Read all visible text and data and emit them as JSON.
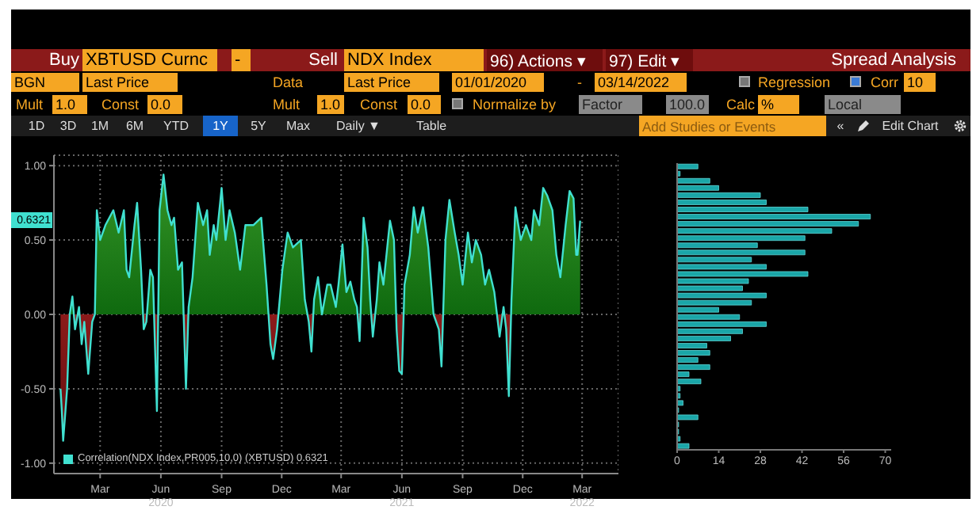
{
  "chart_data": [
    {
      "type": "other",
      "annotations": [
        "Buy",
        "XBTUSD Curnc",
        "-",
        "Sell",
        "NDX Index",
        "96) Actions ▾",
        "97) Edit ▾",
        "Spread Analysis",
        "BGN",
        "Last Price",
        "Data",
        "Last Price",
        "01/01/2020",
        "-",
        "03/14/2022",
        "Regression",
        "Corr",
        "10",
        "Mult",
        "1.0",
        "Const",
        "0.0",
        "Mult",
        "1.0",
        "Const",
        "0.0",
        "Normalize by",
        "Factor",
        "100.0",
        "Calc",
        "%",
        "Local",
        "1D",
        "3D",
        "1M",
        "6M",
        "YTD",
        "1Y",
        "5Y",
        "Max",
        "Daily ▼",
        "Table",
        "Add Studies or Events",
        "«",
        "Edit Chart"
      ]
    },
    {
      "type": "area",
      "legend": "bottom left",
      "grid": true,
      "x": [
        "2020-01-01",
        "2020-01-03",
        "2020-01-05",
        "2020-01-11",
        "2020-01-15",
        "2020-01-19",
        "2020-01-23",
        "2020-01-29",
        "2020-02-02",
        "2020-02-06",
        "2020-02-12",
        "2020-02-18",
        "2020-02-22",
        "2020-02-25",
        "2020-03-01",
        "2020-03-09",
        "2020-03-21",
        "2020-03-29",
        "2020-04-06",
        "2020-04-10",
        "2020-04-14",
        "2020-04-22",
        "2020-04-26",
        "2020-05-02",
        "2020-05-06",
        "2020-05-10",
        "2020-05-16",
        "2020-05-20",
        "2020-05-26",
        "2020-05-30",
        "2020-06-05",
        "2020-06-11",
        "2020-06-17",
        "2020-06-21",
        "2020-06-27",
        "2020-07-03",
        "2020-07-09",
        "2020-07-13",
        "2020-07-19",
        "2020-07-27",
        "2020-08-04",
        "2020-08-10",
        "2020-08-14",
        "2020-08-20",
        "2020-08-24",
        "2020-09-01",
        "2020-09-07",
        "2020-09-13",
        "2020-09-21",
        "2020-09-29",
        "2020-10-07",
        "2020-10-19",
        "2020-10-31",
        "2020-11-08",
        "2020-11-14",
        "2020-11-18",
        "2020-11-24",
        "2020-12-02",
        "2020-12-10",
        "2020-12-18",
        "2020-12-30",
        "2021-01-05",
        "2021-01-11",
        "2021-01-15",
        "2021-01-19",
        "2021-01-25",
        "2021-01-31",
        "2021-02-08",
        "2021-02-13",
        "2021-02-21",
        "2021-02-25",
        "2021-03-03",
        "2021-03-09",
        "2021-03-15",
        "2021-03-21",
        "2021-03-25",
        "2021-03-29",
        "2021-04-04",
        "2021-04-10",
        "2021-04-14",
        "2021-04-18",
        "2021-04-24",
        "2021-04-28",
        "2021-05-04",
        "2021-05-14",
        "2021-05-20",
        "2021-05-24",
        "2021-05-28",
        "2021-06-01",
        "2021-06-05",
        "2021-06-13",
        "2021-06-19",
        "2021-06-25",
        "2021-07-03",
        "2021-07-11",
        "2021-07-19",
        "2021-07-27",
        "2021-07-31",
        "2021-08-06",
        "2021-08-12",
        "2021-08-20",
        "2021-08-26",
        "2021-09-01",
        "2021-09-09",
        "2021-09-15",
        "2021-09-21",
        "2021-09-29",
        "2021-10-05",
        "2021-10-11",
        "2021-10-19",
        "2021-10-27",
        "2021-11-02",
        "2021-11-06",
        "2021-11-10",
        "2021-11-14",
        "2021-11-20",
        "2021-11-28",
        "2021-12-06",
        "2021-12-14",
        "2021-12-18",
        "2021-12-26",
        "2022-01-01",
        "2022-01-07",
        "2022-01-15",
        "2022-01-21",
        "2022-01-27",
        "2022-02-04",
        "2022-02-10",
        "2022-02-16",
        "2022-02-20",
        "2022-02-22",
        "2022-02-26"
      ],
      "series": [
        {
          "name": "Correlation(NDX Index,PR005,10,0) (XBTUSD) 0.6321",
          "color": "#40e0d0",
          "values": [
            -0.5,
            -0.65,
            -0.85,
            -0.5,
            0,
            0.12,
            -0.1,
            0.05,
            -0.2,
            -0.05,
            -0.4,
            -0.05,
            0,
            0.7,
            0.5,
            0.6,
            0.7,
            0.55,
            0.7,
            0.3,
            0.25,
            0.6,
            0.75,
            0.3,
            -0.1,
            -0.05,
            0.3,
            0.25,
            -0.65,
            0.7,
            0.94,
            0.7,
            0.6,
            0.65,
            0.3,
            0.35,
            -0.5,
            0.05,
            0.25,
            0.75,
            0.6,
            0.7,
            0.4,
            0.6,
            0.5,
            0.85,
            0.5,
            0.7,
            0.55,
            0.3,
            0.6,
            0.6,
            0.65,
            0.2,
            -0.2,
            -0.3,
            -0.1,
            0.3,
            0.55,
            0.45,
            0.5,
            0.1,
            -0.05,
            -0.25,
            0.1,
            0.25,
            0,
            0.2,
            0.2,
            0.05,
            0.2,
            0.47,
            0.15,
            0.22,
            0.1,
            0.05,
            -0.18,
            0.65,
            0.45,
            0.1,
            -0.15,
            0.1,
            0.35,
            0.2,
            0.63,
            0.5,
            -0.1,
            -0.38,
            -0.4,
            0.2,
            0.4,
            0.72,
            0.55,
            0.72,
            0.45,
            0,
            -0.1,
            -0.35,
            0.5,
            0.77,
            0.55,
            0.4,
            0.2,
            0.55,
            0.35,
            0.5,
            0.4,
            0.2,
            0.3,
            0.15,
            -0.15,
            0.05,
            -0.1,
            -0.55,
            0.1,
            0.72,
            0.5,
            0.6,
            0.5,
            0.7,
            0.6,
            0.85,
            0.8,
            0.7,
            0.4,
            0.25,
            0.6,
            0.83,
            0.78,
            0.4,
            0.4,
            0.63
          ]
        }
      ],
      "xlim": [
        "2019-12-22",
        "2022-04-25"
      ],
      "xticks": [
        {
          "value": "2020-03-01",
          "label": "Mar"
        },
        {
          "value": "2020-06-01",
          "label": "Jun\n2020"
        },
        {
          "value": "2020-09-01",
          "label": "Sep"
        },
        {
          "value": "2020-12-01",
          "label": "Dec"
        },
        {
          "value": "2021-03-01",
          "label": "Mar"
        },
        {
          "value": "2021-06-01",
          "label": "Jun\n2021"
        },
        {
          "value": "2021-09-01",
          "label": "Sep"
        },
        {
          "value": "2021-12-01",
          "label": "Dec"
        },
        {
          "value": "2022-03-01",
          "label": "Mar\n2022"
        }
      ],
      "ylim": [
        -1.07,
        1.07
      ],
      "yticks": [
        {
          "value": 1,
          "label": "1.00"
        },
        {
          "value": 0.5,
          "label": "0.50"
        },
        {
          "value": 0,
          "label": "0.00"
        },
        {
          "value": -0.5,
          "label": "-0.50"
        },
        {
          "value": -1,
          "label": "-1.00"
        }
      ],
      "annotations": [
        {
          "text": "0.6321",
          "y": 0.6321
        }
      ]
    },
    {
      "type": "bar",
      "orientation": "horizontal",
      "categories": [
        null,
        null,
        null,
        null,
        null,
        null,
        null,
        null,
        null,
        null,
        null,
        null,
        null,
        null,
        null,
        null,
        null,
        null,
        null,
        null,
        null,
        null,
        null,
        null,
        null,
        null,
        null,
        null,
        null,
        null,
        null,
        null,
        null,
        null,
        null,
        null,
        null,
        null,
        null,
        null
      ],
      "series": [
        {
          "color": "#1aa6a8",
          "values": [
            7,
            1,
            11,
            14,
            28,
            30,
            44,
            65,
            61,
            52,
            43,
            27,
            43,
            25,
            30,
            44,
            24,
            22,
            30,
            25,
            14,
            21,
            30,
            22,
            18,
            10,
            11,
            7,
            11,
            4,
            8,
            1,
            1,
            2,
            0.5,
            7,
            0.5,
            0.5,
            1,
            4
          ]
        }
      ],
      "xlim": [
        0,
        72
      ],
      "xticks": [
        0,
        14,
        28,
        42,
        56,
        70
      ]
    }
  ]
}
